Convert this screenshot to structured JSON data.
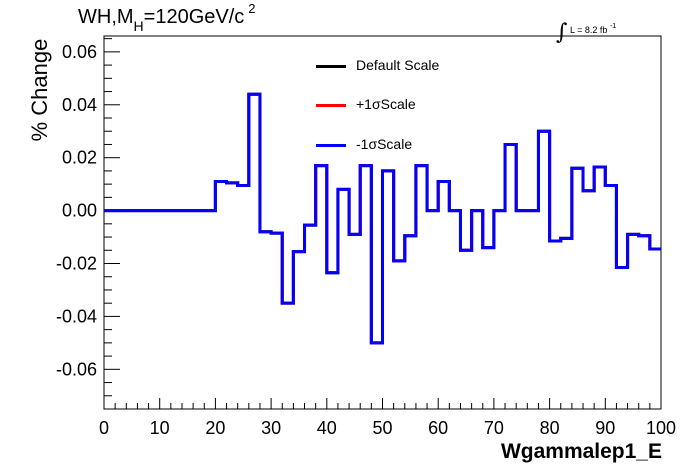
{
  "chart_data": {
    "type": "line",
    "title": "WH,M",
    "title_sub": "H",
    "title_rest": "=120GeV/c",
    "title_sup": "2",
    "lumi_label": "L = 8.2 fb",
    "lumi_sup": "-1",
    "lumi_integral": "∫",
    "xlabel": "Wgammalep1_E",
    "ylabel": "% Change",
    "xlim": [
      0,
      100
    ],
    "ylim": [
      -0.075,
      0.066
    ],
    "x_ticks": [
      0,
      10,
      20,
      30,
      40,
      50,
      60,
      70,
      80,
      90,
      100
    ],
    "x_tick_labels": [
      "0",
      "10",
      "20",
      "30",
      "40",
      "50",
      "60",
      "70",
      "80",
      "90",
      "100"
    ],
    "y_ticks": [
      -0.06,
      -0.04,
      -0.02,
      0.0,
      0.02,
      0.04,
      0.06
    ],
    "y_tick_labels": [
      "-0.06",
      "-0.04",
      "-0.02",
      "0.00",
      "0.02",
      "0.04",
      "0.06"
    ],
    "grid": false,
    "legend_position": "top-center",
    "bin_edges": [
      0,
      2,
      4,
      6,
      8,
      10,
      12,
      14,
      16,
      18,
      20,
      22,
      24,
      26,
      28,
      30,
      32,
      34,
      36,
      38,
      40,
      42,
      44,
      46,
      48,
      50,
      52,
      54,
      56,
      58,
      60,
      62,
      64,
      66,
      68,
      70,
      72,
      74,
      76,
      78,
      80,
      82,
      84,
      86,
      88,
      90,
      92,
      94,
      96,
      98,
      100
    ],
    "series": [
      {
        "name": "Default Scale",
        "color": "#000000",
        "values": [
          0,
          0,
          0,
          0,
          0,
          0,
          0,
          0,
          0,
          0,
          0.011,
          0.0105,
          0.0095,
          0.044,
          -0.008,
          -0.0085,
          -0.035,
          -0.0155,
          -0.0055,
          0.017,
          -0.0235,
          0.008,
          -0.009,
          0.017,
          -0.05,
          0.015,
          -0.019,
          -0.0095,
          0.017,
          0.0,
          0.011,
          0.0,
          -0.015,
          0.0,
          -0.014,
          0.0,
          0.025,
          0.0,
          0.0,
          0.03,
          -0.0115,
          -0.0105,
          0.016,
          0.0075,
          0.0165,
          0.0095,
          -0.0215,
          -0.009,
          -0.0095,
          -0.0145
        ]
      },
      {
        "name": "+1σScale",
        "color": "#ff0000",
        "values": [
          0,
          0,
          0,
          0,
          0,
          0,
          0,
          0,
          0,
          0,
          0.011,
          0.0105,
          0.0095,
          0.044,
          -0.008,
          -0.0085,
          -0.035,
          -0.0155,
          -0.0055,
          0.017,
          -0.0235,
          0.008,
          -0.009,
          0.017,
          -0.05,
          0.015,
          -0.019,
          -0.0095,
          0.017,
          0.0,
          0.011,
          0.0,
          -0.015,
          0.0,
          -0.014,
          0.0,
          0.025,
          0.0,
          0.0,
          0.03,
          -0.0115,
          -0.0105,
          0.016,
          0.0075,
          0.0165,
          0.0095,
          -0.0215,
          -0.009,
          -0.0095,
          -0.0145
        ]
      },
      {
        "name": "-1σScale",
        "color": "#0000ff",
        "values": [
          0,
          0,
          0,
          0,
          0,
          0,
          0,
          0,
          0,
          0,
          0.011,
          0.0105,
          0.0095,
          0.044,
          -0.008,
          -0.0085,
          -0.035,
          -0.0155,
          -0.0055,
          0.017,
          -0.0235,
          0.008,
          -0.009,
          0.017,
          -0.05,
          0.015,
          -0.019,
          -0.0095,
          0.017,
          0.0,
          0.011,
          0.0,
          -0.015,
          0.0,
          -0.014,
          0.0,
          0.025,
          0.0,
          0.0,
          0.03,
          -0.0115,
          -0.0105,
          0.016,
          0.0075,
          0.0165,
          0.0095,
          -0.0215,
          -0.009,
          -0.0095,
          -0.0145
        ]
      }
    ]
  }
}
